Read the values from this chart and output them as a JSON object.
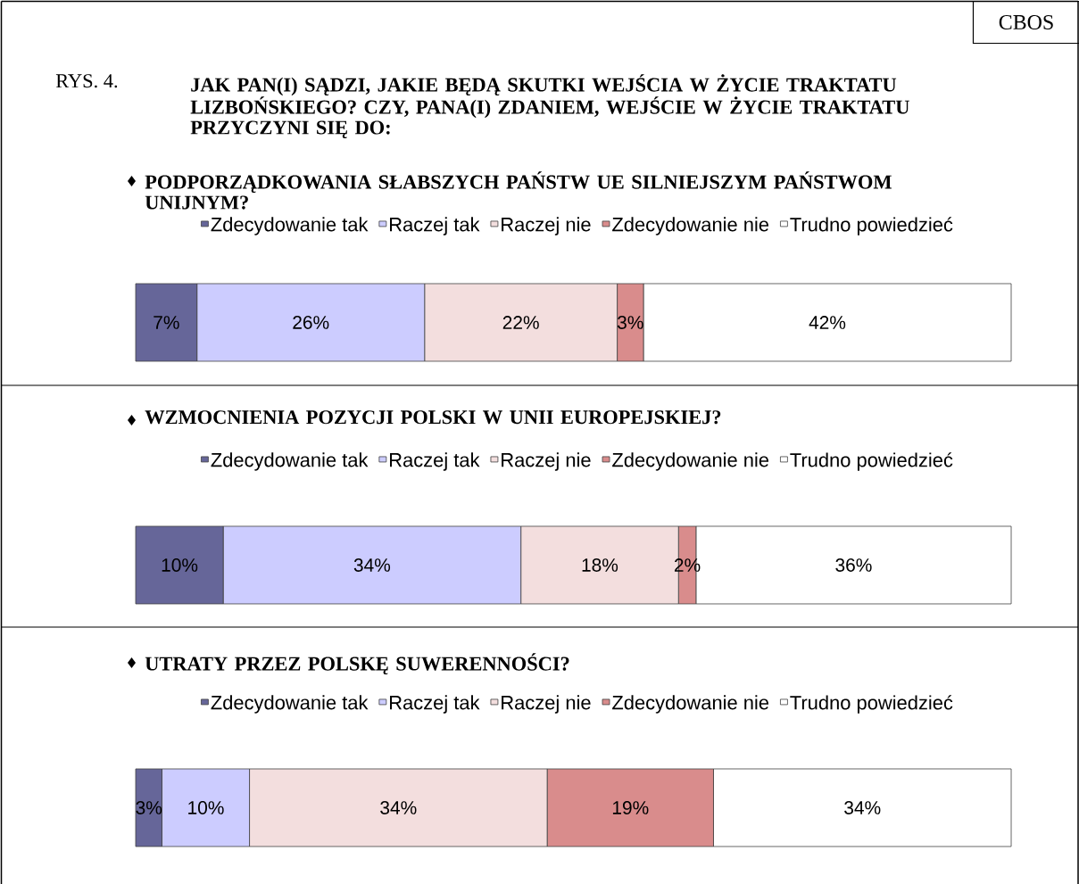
{
  "chart_data": [
    {
      "type": "bar",
      "orientation": "horizontal",
      "stacked": true,
      "legend": "top",
      "title": "JAK PAN(I) SĄDZI, JAKIE BĘDĄ SKUTKI WEJŚCIA W ŻYCIE TRAKTATU LIZBOŃSKIEGO? CZY, PANA(I) ZDANIEM, WEJŚCIE W ŻYCIE TRAKTATU PRZYCZYNI SIĘ DO:",
      "subtitle": "PODPORZĄDKOWANIA SŁABSZYCH PAŃSTW UE SILNIEJSZYM PAŃSTWOM UNIJNYM?",
      "annotations": [
        "CBOS",
        "RYS. 4."
      ],
      "categories": [
        null
      ],
      "series": [
        {
          "name": "Zdecydowanie tak",
          "color": "#666699",
          "values": [
            7
          ],
          "value_labels": [
            "7%"
          ]
        },
        {
          "name": "Raczej tak",
          "color": "#ccccff",
          "values": [
            26
          ],
          "value_labels": [
            "26%"
          ]
        },
        {
          "name": "Raczej nie",
          "color": "#f3dede",
          "values": [
            22
          ],
          "value_labels": [
            "22%"
          ]
        },
        {
          "name": "Zdecydowanie nie",
          "color": "#d98c8c",
          "values": [
            3
          ],
          "value_labels": [
            "3%"
          ]
        },
        {
          "name": "Trudno powiedzieć",
          "color": "#ffffff",
          "values": [
            42
          ],
          "value_labels": [
            "42%"
          ]
        }
      ]
    },
    {
      "type": "bar",
      "orientation": "horizontal",
      "stacked": true,
      "legend": "top",
      "title": "WZMOCNIENIA POZYCJI POLSKI W UNII EUROPEJSKIEJ?",
      "categories": [
        null
      ],
      "series": [
        {
          "name": "Zdecydowanie tak",
          "color": "#666699",
          "values": [
            10
          ],
          "value_labels": [
            "10%"
          ]
        },
        {
          "name": "Raczej tak",
          "color": "#ccccff",
          "values": [
            34
          ],
          "value_labels": [
            "34%"
          ]
        },
        {
          "name": "Raczej nie",
          "color": "#f3dede",
          "values": [
            18
          ],
          "value_labels": [
            "18%"
          ]
        },
        {
          "name": "Zdecydowanie nie",
          "color": "#d98c8c",
          "values": [
            2
          ],
          "value_labels": [
            "2%"
          ]
        },
        {
          "name": "Trudno powiedzieć",
          "color": "#ffffff",
          "values": [
            36
          ],
          "value_labels": [
            "36%"
          ]
        }
      ]
    },
    {
      "type": "bar",
      "orientation": "horizontal",
      "stacked": true,
      "legend": "top",
      "title": "UTRATY PRZEZ POLSKĘ SUWERENNOŚCI?",
      "categories": [
        null
      ],
      "series": [
        {
          "name": "Zdecydowanie tak",
          "color": "#666699",
          "values": [
            3
          ],
          "value_labels": [
            "3%"
          ]
        },
        {
          "name": "Raczej tak",
          "color": "#ccccff",
          "values": [
            10
          ],
          "value_labels": [
            "10%"
          ]
        },
        {
          "name": "Raczej nie",
          "color": "#f3dede",
          "values": [
            34
          ],
          "value_labels": [
            "34%"
          ]
        },
        {
          "name": "Zdecydowanie nie",
          "color": "#d98c8c",
          "values": [
            19
          ],
          "value_labels": [
            "19%"
          ]
        },
        {
          "name": "Trudno powiedzieć",
          "color": "#ffffff",
          "values": [
            34
          ],
          "value_labels": [
            "34%"
          ]
        }
      ]
    }
  ]
}
